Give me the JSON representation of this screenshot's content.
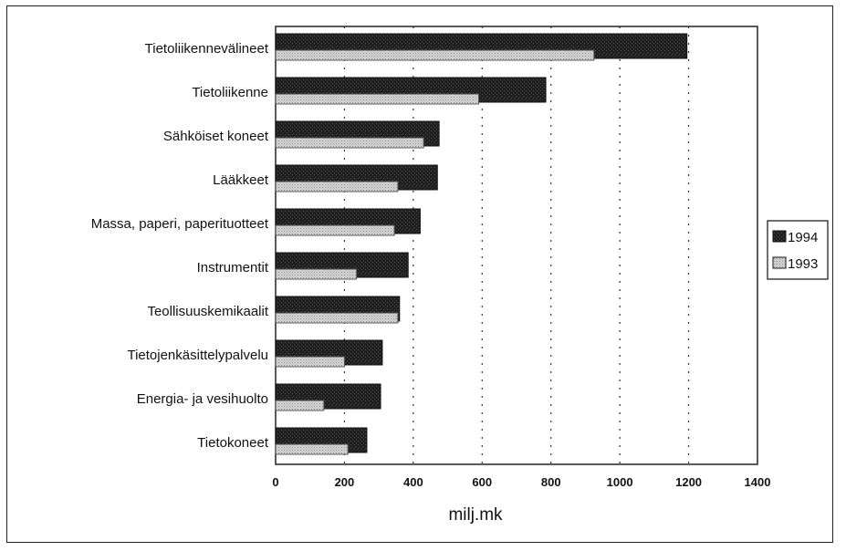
{
  "chart_data": {
    "type": "bar",
    "orientation": "horizontal",
    "categories": [
      "Tietoliikennevälineet",
      "Tietoliikenne",
      "Sähköiset koneet",
      "Lääkkeet",
      "Massa, paperi, paperituotteet",
      "Instrumentit",
      "Teollisuuskemikaalit",
      "Tietojenkäsittelypalvelu",
      "Energia- ja vesihuolto",
      "Tietokoneet"
    ],
    "series": [
      {
        "name": "1994",
        "color": "#2a2a2a",
        "values": [
          1195,
          785,
          475,
          470,
          420,
          385,
          360,
          310,
          305,
          265
        ]
      },
      {
        "name": "1993",
        "color": "#c8c8c8",
        "values": [
          925,
          590,
          430,
          355,
          345,
          235,
          355,
          200,
          140,
          210
        ]
      }
    ],
    "xlabel": "milj.mk",
    "ylabel": "",
    "xlim": [
      0,
      1400
    ],
    "xticks": [
      "0",
      "200",
      "400",
      "600",
      "800",
      "1000",
      "1200",
      "1400"
    ],
    "grid": "vertical dotted",
    "legend_position": "right"
  }
}
